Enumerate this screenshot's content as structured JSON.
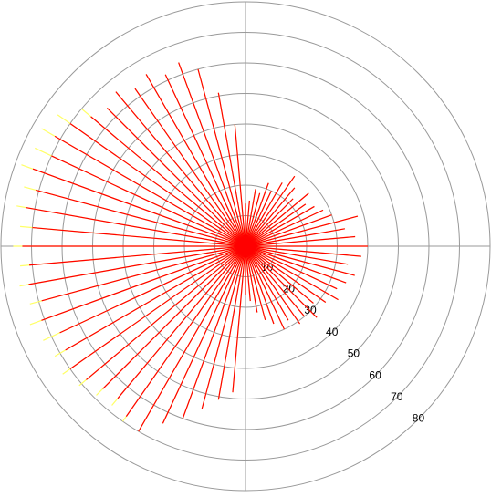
{
  "chart_data": {
    "type": "polar",
    "theta": [
      0,
      5,
      10,
      15,
      20,
      25,
      30,
      35,
      40,
      45,
      50,
      55,
      60,
      65,
      70,
      75,
      80,
      85,
      90,
      95,
      100,
      105,
      110,
      115,
      120,
      125,
      130,
      135,
      140,
      145,
      150,
      155,
      160,
      165,
      170,
      175,
      180,
      185,
      190,
      195,
      200,
      205,
      210,
      215,
      220,
      225,
      230,
      235,
      240,
      245,
      250,
      255,
      260,
      265,
      270,
      275,
      280,
      285,
      290,
      295,
      300,
      305,
      310,
      315,
      320,
      325,
      330,
      335,
      340,
      345,
      350,
      355
    ],
    "series": [
      {
        "color": "#ffff66",
        "values": [
          40,
          36,
          33,
          38,
          30,
          28,
          26,
          24,
          27,
          22,
          25,
          28,
          24,
          20,
          22,
          18,
          19,
          15,
          14,
          40,
          51,
          60,
          64,
          62,
          65,
          63,
          66,
          64,
          70,
          75,
          77,
          76,
          78,
          75,
          76,
          74,
          76,
          74,
          75,
          73,
          75,
          73,
          72,
          73,
          71,
          69,
          68,
          70,
          70,
          64,
          60,
          55,
          51,
          48,
          16,
          18,
          22,
          25,
          27,
          30,
          28,
          31,
          30,
          33,
          29,
          32,
          35,
          33,
          35,
          37,
          34,
          38
        ]
      },
      {
        "color": "#ff0000",
        "values": [
          40,
          36,
          33,
          38,
          30,
          28,
          26,
          24,
          27,
          22,
          25,
          28,
          24,
          20,
          22,
          18,
          19,
          15,
          14,
          40,
          51,
          60,
          64,
          62,
          65,
          63,
          66,
          64,
          66,
          70,
          72,
          70,
          74,
          71,
          73,
          70,
          73,
          71,
          72,
          69,
          71,
          67,
          68,
          70,
          68,
          66,
          65,
          68,
          70,
          64,
          60,
          55,
          51,
          48,
          16,
          18,
          22,
          25,
          27,
          30,
          28,
          31,
          30,
          33,
          29,
          32,
          35,
          33,
          35,
          37,
          34,
          38
        ]
      }
    ],
    "rlim": [
      0,
      80
    ],
    "rticks": [
      10,
      20,
      30,
      40,
      50,
      60,
      70,
      80
    ],
    "grid": true
  }
}
